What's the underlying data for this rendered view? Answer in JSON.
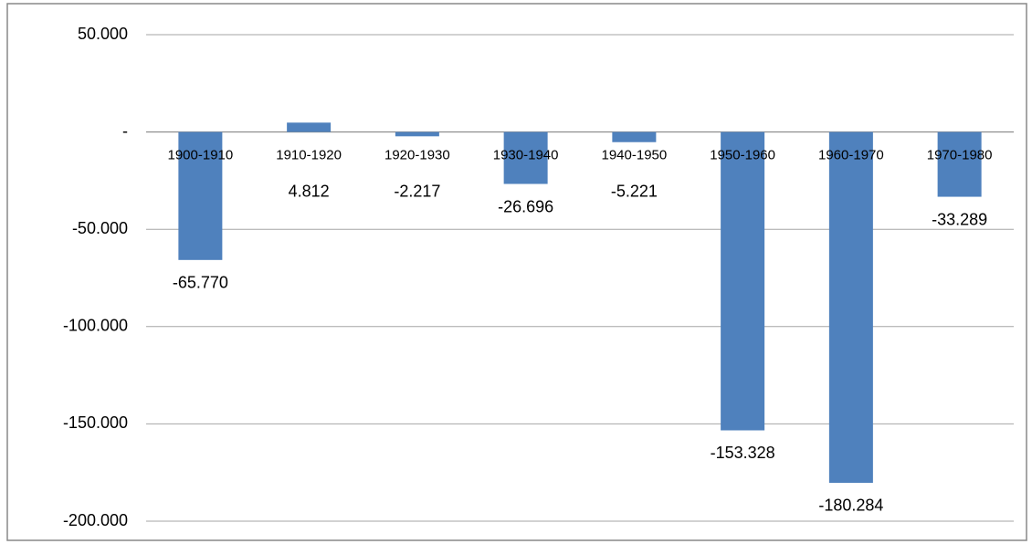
{
  "chart_data": {
    "type": "bar",
    "categories": [
      "1900-1910",
      "1910-1920",
      "1920-1930",
      "1930-1940",
      "1940-1950",
      "1950-1960",
      "1960-1970",
      "1970-1980"
    ],
    "values": [
      -65770,
      4812,
      -2217,
      -26696,
      -5221,
      -153328,
      -180284,
      -33289
    ],
    "value_labels": [
      "-65.770",
      "4.812",
      "-2.217",
      "-26.696",
      "-5.221",
      "-153.328",
      "-180.284",
      "-33.289"
    ],
    "color": "#4f81bd",
    "ylim": [
      -200000,
      50000
    ],
    "yticks": [
      {
        "value": 50000,
        "label": "50.000"
      },
      {
        "value": 0,
        "label": "-"
      },
      {
        "value": -50000,
        "label": "-50.000"
      },
      {
        "value": -100000,
        "label": "-100.000"
      },
      {
        "value": -150000,
        "label": "-150.000"
      },
      {
        "value": -200000,
        "label": "-200.000"
      }
    ],
    "grid": true
  }
}
